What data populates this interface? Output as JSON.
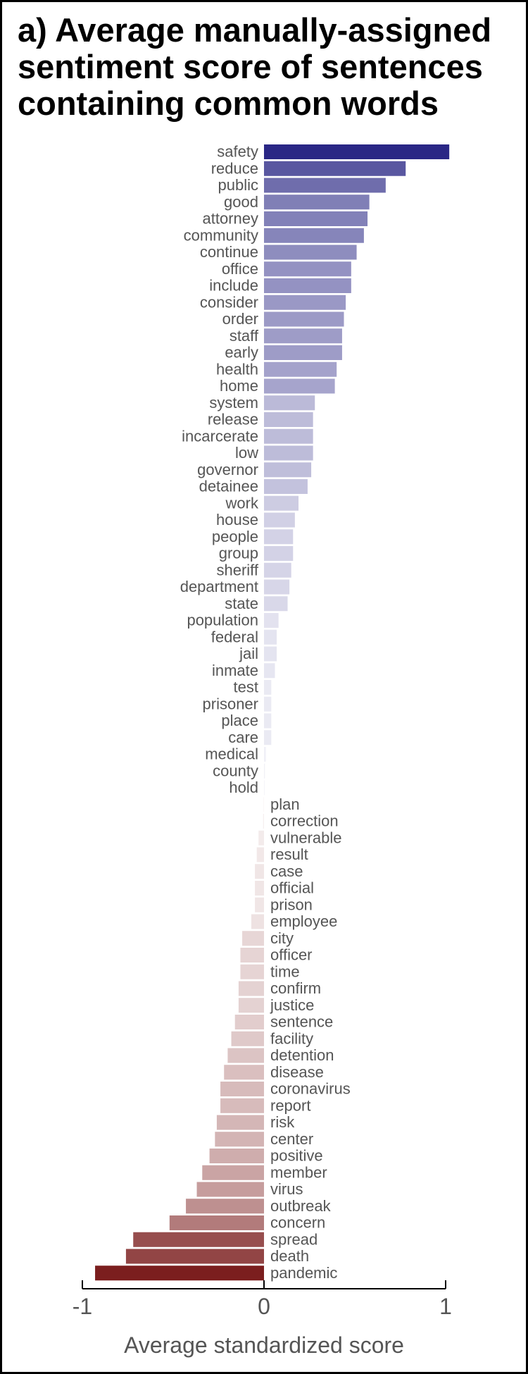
{
  "title": "a) Average manually-assigned\n   sentiment score of sentences\n   containing common words",
  "chart_data": {
    "type": "bar",
    "orientation": "horizontal",
    "title": "a) Average manually-assigned sentiment score of sentences containing common words",
    "xlabel": "Average standardized score",
    "ylabel": "",
    "xlim": [
      -1,
      1
    ],
    "xticks": [
      -1,
      0,
      1
    ],
    "xtick_labels": [
      "-1",
      "0",
      "1"
    ],
    "grid": false,
    "legend": "none",
    "colors": {
      "positive_max": "#2a2785",
      "negative_max": "#7b1e1e",
      "text": "#555555"
    },
    "categories": [
      "safety",
      "reduce",
      "public",
      "good",
      "attorney",
      "community",
      "continue",
      "office",
      "include",
      "consider",
      "order",
      "staff",
      "early",
      "health",
      "home",
      "system",
      "release",
      "incarcerate",
      "low",
      "governor",
      "detainee",
      "work",
      "house",
      "people",
      "group",
      "sheriff",
      "department",
      "state",
      "population",
      "federal",
      "jail",
      "inmate",
      "test",
      "prisoner",
      "place",
      "care",
      "medical",
      "county",
      "hold",
      "plan",
      "correction",
      "vulnerable",
      "result",
      "case",
      "official",
      "prison",
      "employee",
      "city",
      "officer",
      "time",
      "confirm",
      "justice",
      "sentence",
      "facility",
      "detention",
      "disease",
      "coronavirus",
      "report",
      "risk",
      "center",
      "positive",
      "member",
      "virus",
      "outbreak",
      "concern",
      "spread",
      "death",
      "pandemic"
    ],
    "values": [
      1.02,
      0.78,
      0.67,
      0.58,
      0.57,
      0.55,
      0.51,
      0.48,
      0.48,
      0.45,
      0.44,
      0.43,
      0.43,
      0.4,
      0.39,
      0.28,
      0.27,
      0.27,
      0.27,
      0.26,
      0.24,
      0.19,
      0.17,
      0.16,
      0.16,
      0.15,
      0.14,
      0.13,
      0.08,
      0.07,
      0.07,
      0.06,
      0.04,
      0.04,
      0.04,
      0.04,
      0.01,
      0.005,
      0.003,
      -0.002,
      -0.005,
      -0.03,
      -0.04,
      -0.05,
      -0.05,
      -0.05,
      -0.07,
      -0.12,
      -0.13,
      -0.13,
      -0.14,
      -0.14,
      -0.16,
      -0.18,
      -0.2,
      -0.22,
      -0.24,
      -0.24,
      -0.26,
      -0.27,
      -0.3,
      -0.34,
      -0.37,
      -0.43,
      -0.52,
      -0.72,
      -0.76,
      -0.93
    ]
  }
}
